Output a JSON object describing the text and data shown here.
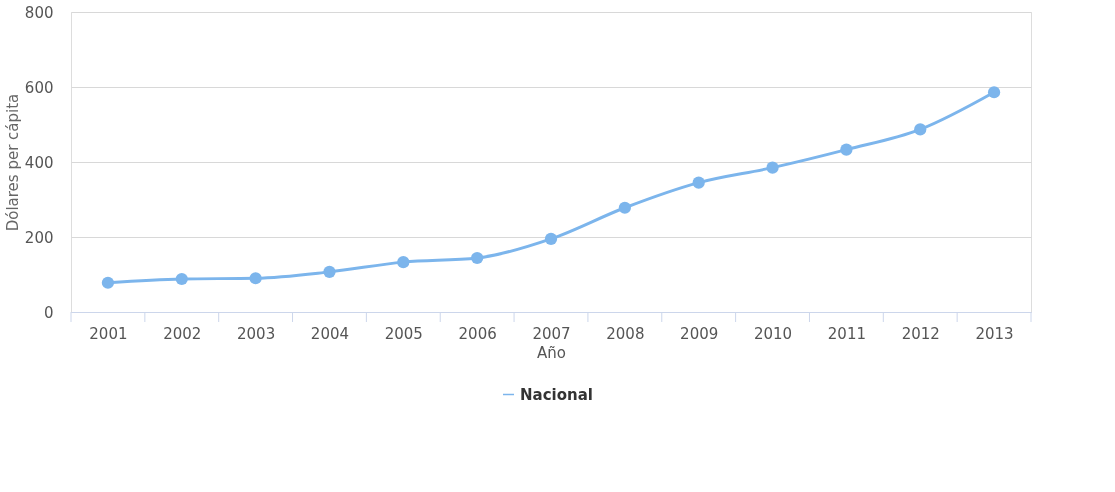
{
  "chart_data": {
    "type": "line",
    "xlabel": "Año",
    "ylabel": "Dólares per cápita",
    "categories": [
      "2001",
      "2002",
      "2003",
      "2004",
      "2005",
      "2006",
      "2007",
      "2008",
      "2009",
      "2010",
      "2011",
      "2012",
      "2013"
    ],
    "series": [
      {
        "name": "Nacional",
        "color": "#7cb5ec",
        "values": [
          78,
          88,
          90,
          107,
          133,
          144,
          195,
          278,
          345,
          385,
          433,
          487,
          586
        ]
      }
    ],
    "ylim": [
      0,
      800
    ],
    "yticks": [
      0,
      200,
      400,
      600,
      800
    ],
    "grid": "y",
    "legend": "bottom",
    "marker": "circle",
    "line_style": "solid"
  }
}
